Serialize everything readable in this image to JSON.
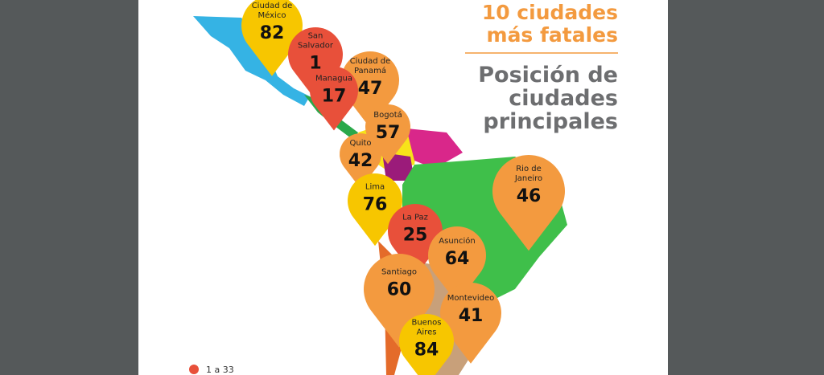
{
  "header": {
    "title_lines": [
      "10 ciudades",
      "más fatales"
    ],
    "subtitle_lines": [
      "Posición de",
      "ciudades",
      "principales"
    ]
  },
  "pins": [
    {
      "name_lines": [
        "Ciudad de",
        "México"
      ],
      "rank": "82",
      "color": "#f7c600"
    },
    {
      "name_lines": [
        "San",
        "Salvador"
      ],
      "rank": "1",
      "color": "#e8503a"
    },
    {
      "name_lines": [
        "Ciudad de",
        "Panamá"
      ],
      "rank": "47",
      "color": "#f39a3f"
    },
    {
      "name_lines": [
        "Managua"
      ],
      "rank": "17",
      "color": "#e8503a"
    },
    {
      "name_lines": [
        "Bogotá"
      ],
      "rank": "57",
      "color": "#f39a3f"
    },
    {
      "name_lines": [
        "Quito"
      ],
      "rank": "42",
      "color": "#f39a3f"
    },
    {
      "name_lines": [
        "Lima"
      ],
      "rank": "76",
      "color": "#f7c600"
    },
    {
      "name_lines": [
        "La Paz"
      ],
      "rank": "25",
      "color": "#e8503a"
    },
    {
      "name_lines": [
        "Rio de",
        "Janeiro"
      ],
      "rank": "46",
      "color": "#f39a3f"
    },
    {
      "name_lines": [
        "Asunción"
      ],
      "rank": "64",
      "color": "#f39a3f"
    },
    {
      "name_lines": [
        "Santiago"
      ],
      "rank": "60",
      "color": "#f39a3f"
    },
    {
      "name_lines": [
        "Montevideo"
      ],
      "rank": "41",
      "color": "#f39a3f"
    },
    {
      "name_lines": [
        "Buenos",
        "Aires"
      ],
      "rank": "84",
      "color": "#f7c600"
    }
  ],
  "legend": [
    {
      "label": "1 a 33",
      "color": "#e8503a"
    }
  ]
}
